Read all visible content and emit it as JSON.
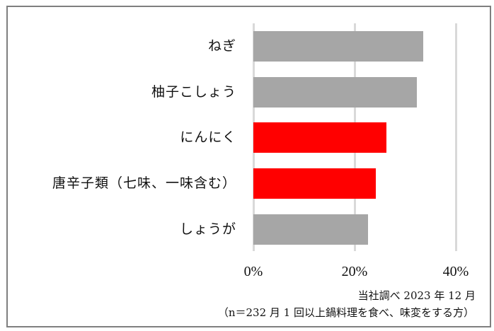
{
  "chart_data": {
    "type": "bar",
    "orientation": "horizontal",
    "title": "",
    "xlabel": "",
    "ylabel": "",
    "categories": [
      "ねぎ",
      "柚子こしょう",
      "にんにく",
      "唐辛子類（七味、一味含む）",
      "しょうが"
    ],
    "values": [
      33.6,
      32.3,
      26.3,
      24.2,
      22.7
    ],
    "unit": "%",
    "bar_colors": [
      "#a6a6a6",
      "#a6a6a6",
      "#ff0000",
      "#ff0000",
      "#a6a6a6"
    ],
    "xlim": [
      0,
      40
    ],
    "xticks": [
      "0%",
      "20%",
      "40%"
    ],
    "grid": true,
    "legend": null,
    "annotations": [
      "当社調べ 2023 年 12 月",
      "（n＝232 月 1 回以上鍋料理を食べ、味変をする方）"
    ]
  },
  "colors": {
    "highlight": "#ff0000",
    "default_bar": "#a6a6a6",
    "gridline": "#d9d9d9",
    "frame": "#7f7f7f"
  },
  "axis": {
    "ticks": [
      {
        "label": "0%",
        "value": 0
      },
      {
        "label": "20%",
        "value": 20
      },
      {
        "label": "40%",
        "value": 40
      }
    ]
  },
  "footer": {
    "source": "当社調べ 2023 年 12 月",
    "sample": "（n＝232 月 1 回以上鍋料理を食べ、味変をする方）"
  }
}
